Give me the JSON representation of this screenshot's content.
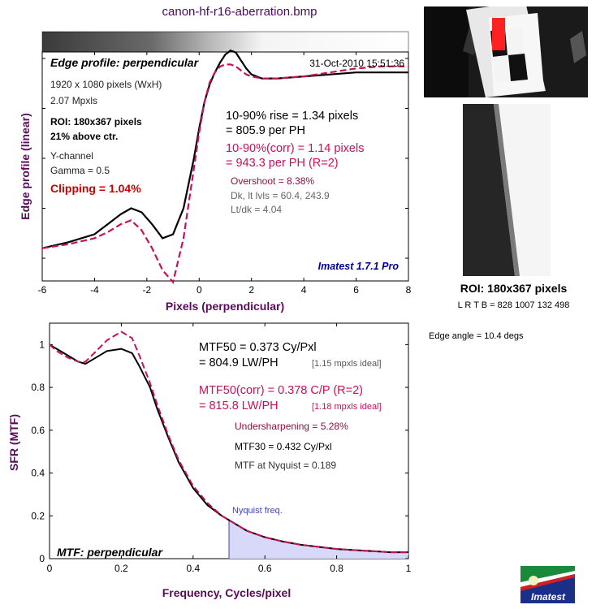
{
  "title": "canon-hf-r16-aberration.bmp",
  "roi_panel": {
    "title": "ROI: 180x367 pixels",
    "coords": "L R  T B = 828 1007   132 498",
    "edge_angle": "Edge angle = 10.4 degs"
  },
  "colors": {
    "uncorrected": "#000000",
    "corrected": "#c8105a",
    "title": "#4a0a5a",
    "axis_label": "#5a0a5a",
    "clipping": "#cc0000",
    "nyquist": "#4040c0",
    "version": "#000099"
  },
  "logo_text": "Imatest",
  "edge_panel": {
    "panel_label": "Edge profile: perpendicular",
    "timestamp": "31-Oct-2010 15:51:36",
    "info": {
      "size": "1920 x 1080 pixels (WxH)",
      "mpxls": "2.07 Mpxls",
      "roi": "ROI: 180x367 pixels",
      "above": "21% above ctr.",
      "channel": "Y-channel",
      "gamma": "Gamma = 0.5",
      "clipping": "Clipping =   1.04%"
    },
    "rise": "10-90% rise = 1.34 pixels",
    "rise_ph": "= 805.9 per PH",
    "rise_corr": "10-90%(corr) = 1.14 pixels",
    "rise_corr_ph": "= 943.3 per PH  (R=2)",
    "overshoot": "Overshoot = 8.38%",
    "dk": "Dk, lt lvls = 60.4, 243.9",
    "ltdk": "Lt/dk = 4.04",
    "version": "Imatest 1.7.1 Pro"
  },
  "mtf_panel": {
    "panel_label": "MTF: perpendicular",
    "mtf50": "MTF50 = 0.373 Cy/Pxl",
    "mtf50_lw": "= 804.9 LW/PH",
    "mtf50_ideal": "[1.15 mpxls ideal]",
    "mtf50_corr": "MTF50(corr) = 0.378 C/P  (R=2)",
    "mtf50_corr_lw": "= 815.8 LW/PH",
    "mtf50_corr_ideal": "[1.18 mpxls ideal]",
    "undersharpening": "Undersharpening = 5.28%",
    "mtf30": "MTF30 = 0.432 Cy/Pxl",
    "mtf_nyquist": "MTF at Nyquist = 0.189",
    "nyquist_label": "Nyquist freq."
  },
  "chart_data": [
    {
      "type": "line",
      "xlabel": "Pixels (perpendicular)",
      "ylabel": "Edge profile (linear)",
      "xlim": [
        -6,
        8
      ],
      "xticks": [
        -6,
        -4,
        -2,
        0,
        2,
        4,
        6,
        8
      ],
      "series": [
        {
          "x": [
            -6,
            -5,
            -4,
            -3.5,
            -3,
            -2.6,
            -2.2,
            -1.8,
            -1.4,
            -1,
            -0.6,
            -0.2,
            0,
            0.2,
            0.4,
            0.6,
            0.8,
            1,
            1.2,
            1.4,
            1.6,
            1.8,
            2,
            2.4,
            3,
            4,
            5,
            6,
            7,
            8
          ],
          "y": [
            0.05,
            0.08,
            0.12,
            0.17,
            0.22,
            0.25,
            0.23,
            0.17,
            0.1,
            0.12,
            0.25,
            0.5,
            0.65,
            0.78,
            0.87,
            0.93,
            0.98,
            1.02,
            1.04,
            1.03,
            0.99,
            0.95,
            0.92,
            0.9,
            0.9,
            0.91,
            0.92,
            0.93,
            0.93,
            0.93
          ]
        },
        {
          "x": [
            -6,
            -5,
            -4,
            -3.5,
            -3,
            -2.6,
            -2.2,
            -1.8,
            -1.4,
            -1,
            -0.6,
            -0.2,
            0,
            0.2,
            0.4,
            0.6,
            0.8,
            1,
            1.2,
            1.4,
            1.6,
            1.8,
            2,
            2.4,
            3,
            4,
            5,
            6,
            7,
            8
          ],
          "y": [
            0.05,
            0.07,
            0.1,
            0.13,
            0.17,
            0.19,
            0.14,
            0.05,
            -0.06,
            -0.12,
            0.1,
            0.45,
            0.63,
            0.78,
            0.88,
            0.93,
            0.96,
            0.97,
            0.97,
            0.96,
            0.94,
            0.92,
            0.91,
            0.9,
            0.9,
            0.91,
            0.93,
            0.95,
            0.96,
            0.96
          ]
        }
      ]
    },
    {
      "type": "line",
      "xlabel": "Frequency, Cycles/pixel",
      "ylabel": "SFR (MTF)",
      "xlim": [
        0,
        1
      ],
      "ylim": [
        0,
        1.1
      ],
      "xticks": [
        0,
        0.2,
        0.4,
        0.6,
        0.8,
        1
      ],
      "yticks": [
        0,
        0.2,
        0.4,
        0.6,
        0.8,
        1
      ],
      "nyquist": 0.5,
      "series": [
        {
          "x": [
            0,
            0.02,
            0.05,
            0.08,
            0.1,
            0.13,
            0.16,
            0.2,
            0.23,
            0.25,
            0.28,
            0.3,
            0.33,
            0.36,
            0.4,
            0.44,
            0.48,
            0.5,
            0.55,
            0.6,
            0.65,
            0.7,
            0.75,
            0.8,
            0.85,
            0.9,
            0.95,
            1
          ],
          "y": [
            1,
            0.98,
            0.95,
            0.92,
            0.91,
            0.94,
            0.97,
            0.98,
            0.96,
            0.9,
            0.8,
            0.7,
            0.57,
            0.45,
            0.33,
            0.25,
            0.2,
            0.18,
            0.13,
            0.1,
            0.08,
            0.065,
            0.055,
            0.045,
            0.04,
            0.035,
            0.03,
            0.03
          ]
        },
        {
          "x": [
            0,
            0.02,
            0.05,
            0.08,
            0.1,
            0.13,
            0.16,
            0.2,
            0.23,
            0.25,
            0.28,
            0.3,
            0.33,
            0.36,
            0.4,
            0.44,
            0.48,
            0.5,
            0.55,
            0.6,
            0.65,
            0.7,
            0.75,
            0.8,
            0.85,
            0.9,
            0.95,
            1
          ],
          "y": [
            1,
            0.97,
            0.94,
            0.92,
            0.92,
            0.97,
            1.02,
            1.06,
            1.03,
            0.95,
            0.82,
            0.72,
            0.58,
            0.46,
            0.34,
            0.26,
            0.2,
            0.18,
            0.13,
            0.1,
            0.08,
            0.065,
            0.055,
            0.045,
            0.04,
            0.035,
            0.03,
            0.03
          ]
        }
      ]
    }
  ]
}
